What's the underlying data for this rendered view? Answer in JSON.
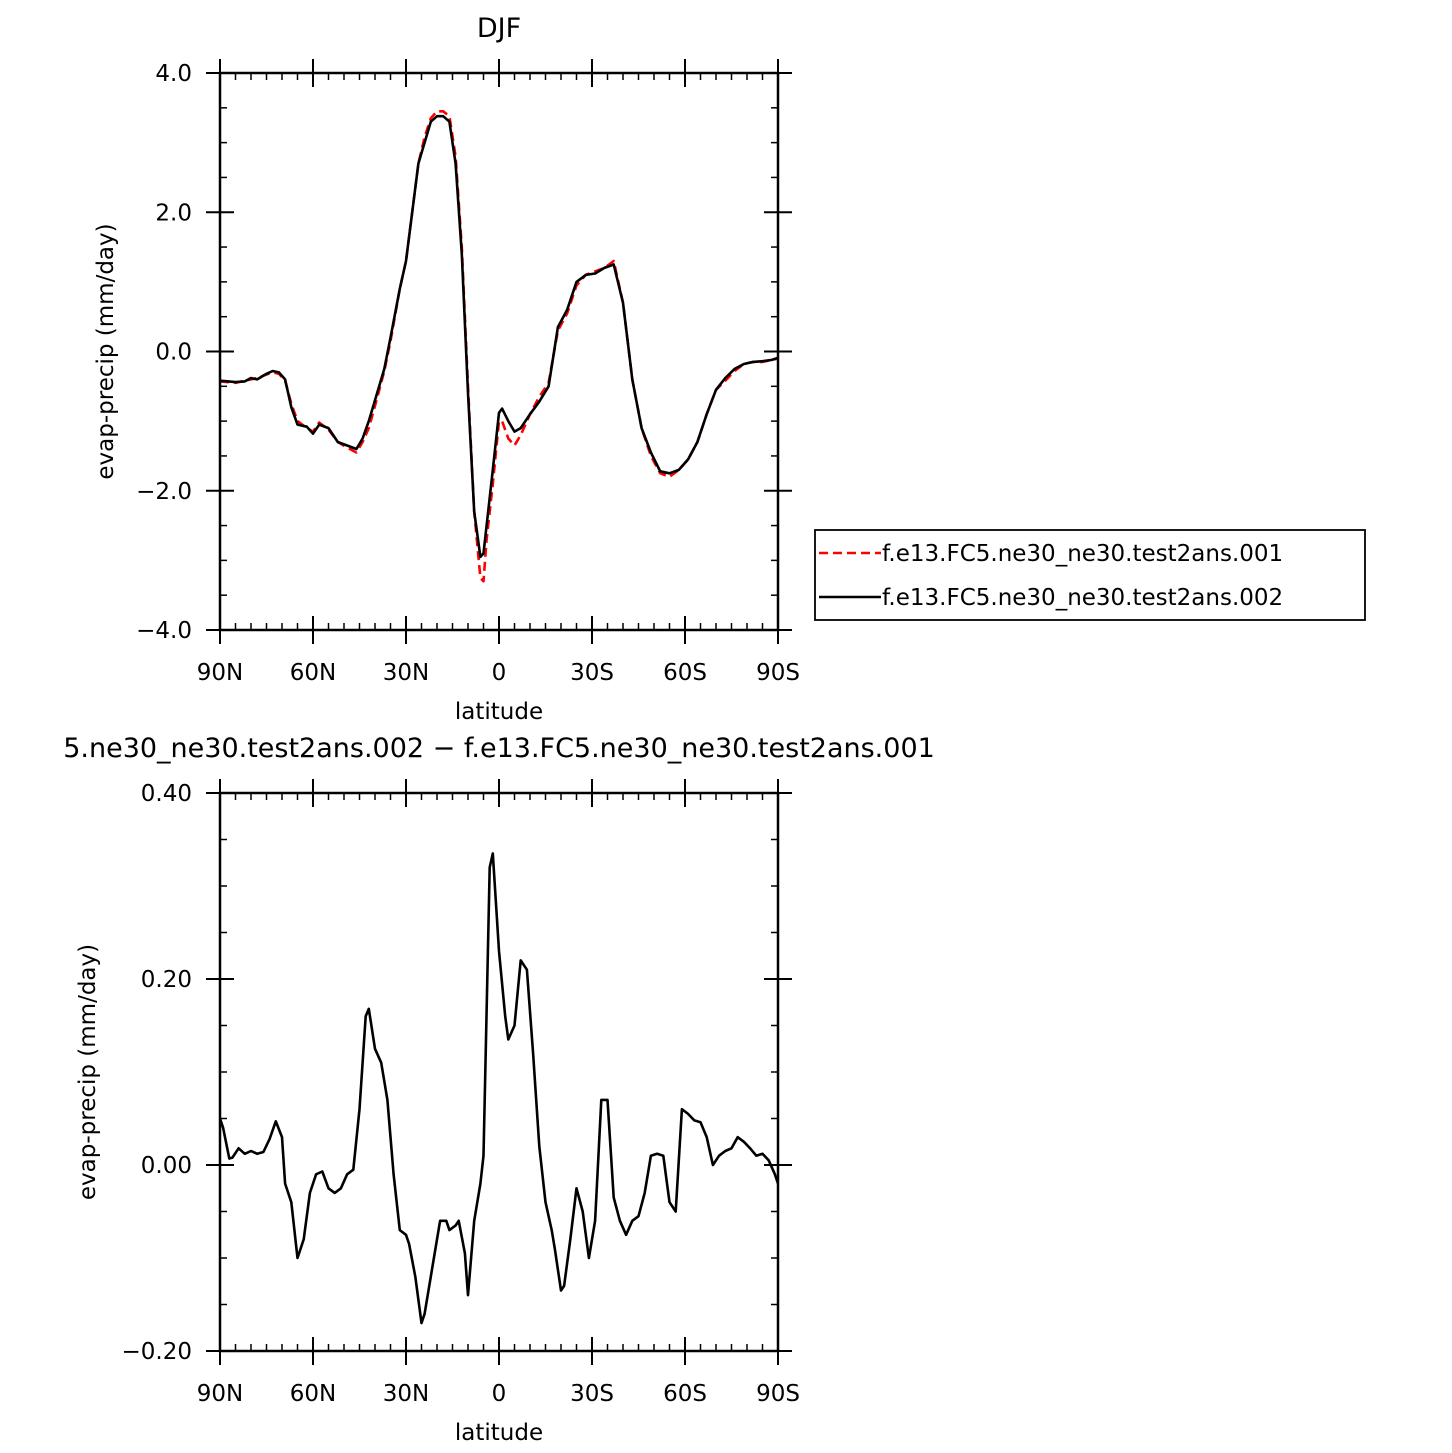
{
  "chart_data": [
    {
      "type": "line",
      "title": "DJF",
      "xlabel": "latitude",
      "ylabel": "evap-precip (mm/day)",
      "xlim": [
        -90,
        90
      ],
      "ylim": [
        -4.0,
        4.0
      ],
      "x_ticks": [
        -90,
        -60,
        -30,
        0,
        30,
        60,
        90
      ],
      "x_tick_labels": [
        "90N",
        "60N",
        "30N",
        "0",
        "30S",
        "60S",
        "90S"
      ],
      "y_ticks": [
        -4.0,
        -2.0,
        0.0,
        2.0,
        4.0
      ],
      "y_tick_labels": [
        "−4.0",
        "−2.0",
        "0.0",
        "2.0",
        "4.0"
      ],
      "grid": false,
      "legend_position": "right",
      "x": [
        -90,
        -85,
        -82,
        -80,
        -78,
        -75,
        -73,
        -71,
        -69,
        -67,
        -65,
        -62,
        -60,
        -58,
        -55,
        -52,
        -49,
        -46,
        -44,
        -42,
        -40,
        -37,
        -35,
        -32,
        -30,
        -28,
        -26,
        -24,
        -22,
        -20,
        -18,
        -16,
        -14,
        -12,
        -10,
        -8,
        -6,
        -5,
        -4,
        -2,
        0,
        1,
        3,
        5,
        7,
        10,
        13,
        16,
        19,
        22,
        25,
        28,
        31,
        34,
        37,
        40,
        43,
        46,
        49,
        52,
        55,
        58,
        61,
        64,
        67,
        70,
        73,
        76,
        79,
        82,
        85,
        88,
        90
      ],
      "series": [
        {
          "name": "f.e13.FC5.ne30_ne30.test2ans.001",
          "color": "#ff0000",
          "dash": "dashed",
          "values": [
            -0.43,
            -0.45,
            -0.42,
            -0.4,
            -0.38,
            -0.33,
            -0.3,
            -0.32,
            -0.42,
            -0.75,
            -1.0,
            -1.1,
            -1.15,
            -1.02,
            -1.12,
            -1.3,
            -1.38,
            -1.45,
            -1.3,
            -1.1,
            -0.78,
            -0.28,
            0.15,
            0.9,
            1.3,
            2.0,
            2.7,
            3.08,
            3.35,
            3.45,
            3.45,
            3.38,
            2.8,
            1.5,
            -0.5,
            -2.3,
            -3.25,
            -3.3,
            -2.7,
            -1.9,
            -1.0,
            -1.0,
            -1.25,
            -1.35,
            -1.2,
            -0.9,
            -0.65,
            -0.45,
            0.3,
            0.55,
            0.95,
            1.1,
            1.15,
            1.2,
            1.3,
            0.7,
            -0.4,
            -1.1,
            -1.5,
            -1.75,
            -1.8,
            -1.7,
            -1.55,
            -1.3,
            -0.9,
            -0.55,
            -0.42,
            -0.28,
            -0.18,
            -0.15,
            -0.15,
            -0.12,
            -0.1
          ]
        },
        {
          "name": "f.e13.FC5.ne30_ne30.test2ans.002",
          "color": "#000000",
          "dash": "solid",
          "values": [
            -0.42,
            -0.44,
            -0.43,
            -0.38,
            -0.4,
            -0.32,
            -0.28,
            -0.3,
            -0.4,
            -0.8,
            -1.05,
            -1.08,
            -1.18,
            -1.05,
            -1.1,
            -1.3,
            -1.35,
            -1.4,
            -1.25,
            -1.0,
            -0.7,
            -0.25,
            0.2,
            0.9,
            1.3,
            2.0,
            2.7,
            3.0,
            3.3,
            3.38,
            3.38,
            3.3,
            2.7,
            1.4,
            -0.6,
            -2.3,
            -2.95,
            -2.9,
            -2.5,
            -1.7,
            -0.88,
            -0.82,
            -1.0,
            -1.15,
            -1.1,
            -0.9,
            -0.72,
            -0.5,
            0.35,
            0.6,
            1.0,
            1.1,
            1.12,
            1.2,
            1.25,
            0.7,
            -0.4,
            -1.1,
            -1.45,
            -1.72,
            -1.75,
            -1.7,
            -1.55,
            -1.3,
            -0.9,
            -0.55,
            -0.38,
            -0.25,
            -0.18,
            -0.15,
            -0.14,
            -0.12,
            -0.09
          ]
        }
      ]
    },
    {
      "type": "line",
      "title": "5.ne30_ne30.test2ans.002 − f.e13.FC5.ne30_ne30.test2ans.001",
      "xlabel": "latitude",
      "ylabel": "evap-precip (mm/day)",
      "xlim": [
        -90,
        90
      ],
      "ylim": [
        -0.2,
        0.4
      ],
      "x_ticks": [
        -90,
        -60,
        -30,
        0,
        30,
        60,
        90
      ],
      "x_tick_labels": [
        "90N",
        "60N",
        "30N",
        "0",
        "30S",
        "60S",
        "90S"
      ],
      "y_ticks": [
        -0.2,
        0.0,
        0.2,
        0.4
      ],
      "y_tick_labels": [
        "−0.20",
        "0.00",
        "0.20",
        "0.40"
      ],
      "grid": false,
      "x": [
        -90,
        -89,
        -87,
        -86,
        -84,
        -82,
        -80,
        -78,
        -76,
        -74,
        -72,
        -70,
        -69,
        -67,
        -65,
        -63,
        -61,
        -59,
        -57,
        -55,
        -53,
        -51,
        -49,
        -47,
        -45,
        -43,
        -42,
        -40,
        -38,
        -36,
        -34,
        -32,
        -30,
        -29,
        -27,
        -25,
        -24,
        -22,
        -21,
        -19,
        -17,
        -16,
        -14,
        -13,
        -11,
        -10,
        -8,
        -6,
        -5,
        -3,
        -2,
        0,
        2,
        3,
        5,
        7,
        9,
        11,
        13,
        15,
        17,
        18,
        20,
        21,
        23,
        25,
        27,
        29,
        31,
        33,
        35,
        37,
        39,
        41,
        43,
        45,
        47,
        49,
        51,
        53,
        55,
        57,
        59,
        61,
        63,
        65,
        67,
        69,
        71,
        73,
        75,
        77,
        79,
        81,
        83,
        85,
        87,
        89,
        90
      ],
      "series": [
        {
          "name": "",
          "color": "#000000",
          "dash": "solid",
          "values": [
            0.05,
            0.04,
            0.007,
            0.008,
            0.018,
            0.012,
            0.015,
            0.012,
            0.014,
            0.028,
            0.047,
            0.03,
            -0.02,
            -0.04,
            -0.1,
            -0.08,
            -0.03,
            -0.01,
            -0.007,
            -0.025,
            -0.03,
            -0.025,
            -0.01,
            -0.005,
            0.06,
            0.16,
            0.168,
            0.125,
            0.11,
            0.07,
            -0.01,
            -0.07,
            -0.075,
            -0.085,
            -0.12,
            -0.17,
            -0.16,
            -0.12,
            -0.1,
            -0.06,
            -0.06,
            -0.07,
            -0.065,
            -0.06,
            -0.095,
            -0.14,
            -0.06,
            -0.02,
            0.01,
            0.32,
            0.335,
            0.23,
            0.16,
            0.135,
            0.15,
            0.22,
            0.21,
            0.12,
            0.02,
            -0.04,
            -0.07,
            -0.09,
            -0.135,
            -0.13,
            -0.08,
            -0.025,
            -0.05,
            -0.1,
            -0.06,
            0.07,
            0.07,
            -0.035,
            -0.06,
            -0.075,
            -0.06,
            -0.055,
            -0.03,
            0.01,
            0.012,
            0.01,
            -0.04,
            -0.05,
            0.06,
            0.055,
            0.048,
            0.046,
            0.03,
            0.0,
            0.01,
            0.015,
            0.018,
            0.03,
            0.025,
            0.018,
            0.01,
            0.012,
            0.005,
            -0.01,
            -0.02
          ]
        }
      ]
    }
  ]
}
